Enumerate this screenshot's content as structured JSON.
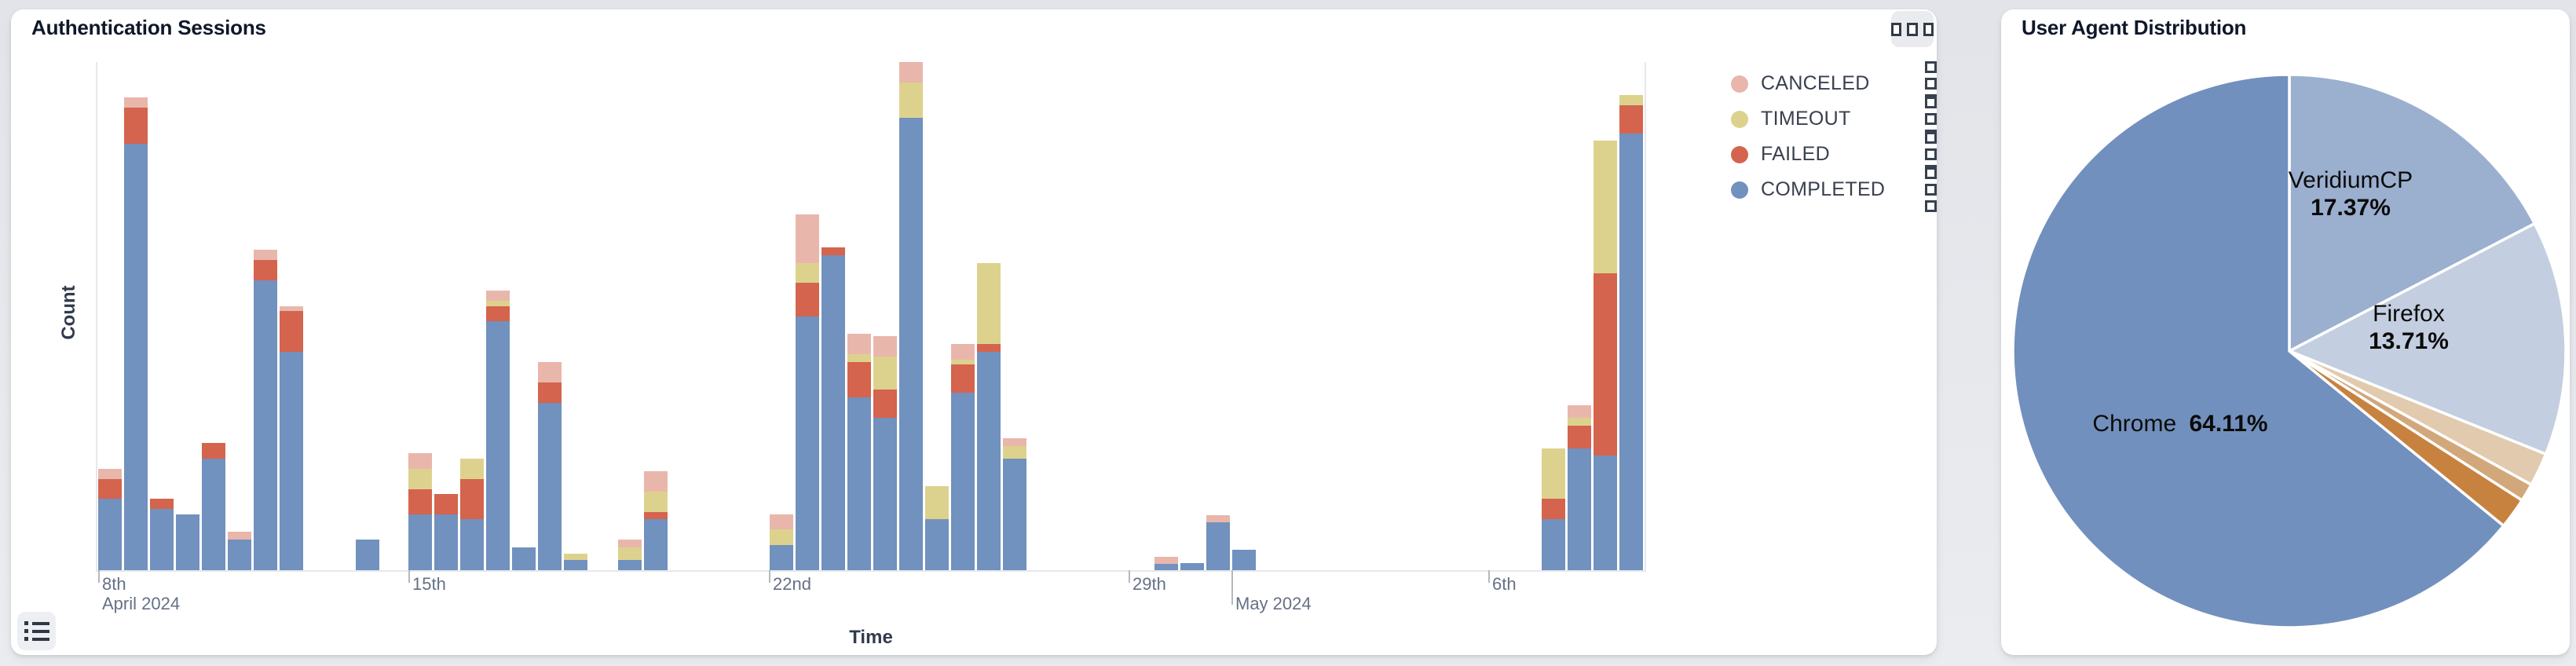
{
  "auth_panel": {
    "title": "Authentication Sessions",
    "xlabel": "Time",
    "ylabel": "Count",
    "legend": [
      {
        "label": "CANCELED",
        "color": "#E9B6AC"
      },
      {
        "label": "TIMEOUT",
        "color": "#DDD28D"
      },
      {
        "label": "FAILED",
        "color": "#D4644D"
      },
      {
        "label": "COMPLETED",
        "color": "#7191BE"
      }
    ],
    "series_colors": {
      "completed": "#7191BE",
      "failed": "#D4644D",
      "timeout": "#DDD28D",
      "canceled": "#E9B6AC"
    },
    "icons": {
      "corner_button": "drag-handle-squares-icon",
      "bottom_left_button": "list-icon",
      "legend_row_icon": "kebab-squares-icon"
    }
  },
  "ua_panel": {
    "title": "User Agent Distribution",
    "labels": {
      "chrome": {
        "name": "Chrome",
        "pct": "64.11%"
      },
      "veridium": {
        "name": "VeridiumCP",
        "pct": "17.37%"
      },
      "firefox": {
        "name": "Firefox",
        "pct": "13.71%"
      }
    }
  },
  "chart_data": [
    {
      "type": "bar",
      "subtype": "stacked-time-histogram",
      "title": "Authentication Sessions",
      "xlabel": "Time",
      "ylabel": "Count",
      "legend_position": "right-top",
      "y_axis_note": "no numeric ticks shown; values below are relative units (100 = tallest bar, plot height)",
      "ylim": [
        0,
        100
      ],
      "stack_order_bottom_to_top": [
        "completed",
        "failed",
        "timeout",
        "canceled"
      ],
      "x_ticks": [
        {
          "x": 125,
          "label": "8th",
          "sub": "April 2024",
          "tall": false
        },
        {
          "x": 520,
          "label": "15th",
          "sub": "",
          "tall": false
        },
        {
          "x": 979,
          "label": "22nd",
          "sub": "",
          "tall": false
        },
        {
          "x": 1437,
          "label": "29th",
          "sub": "",
          "tall": false
        },
        {
          "x": 1568,
          "label": "",
          "sub": "May 2024",
          "tall": true
        },
        {
          "x": 1895,
          "label": "6th",
          "sub": "",
          "tall": false
        }
      ],
      "bars": [
        {
          "x": 125,
          "completed": 14,
          "failed": 4,
          "timeout": 0,
          "canceled": 2
        },
        {
          "x": 158,
          "completed": 84,
          "failed": 7,
          "timeout": 0,
          "canceled": 2
        },
        {
          "x": 191,
          "completed": 12,
          "failed": 2,
          "timeout": 0,
          "canceled": 0
        },
        {
          "x": 224,
          "completed": 11,
          "failed": 0,
          "timeout": 0,
          "canceled": 0
        },
        {
          "x": 257,
          "completed": 22,
          "failed": 3,
          "timeout": 0,
          "canceled": 0
        },
        {
          "x": 290,
          "completed": 6,
          "failed": 0,
          "timeout": 0,
          "canceled": 1.5
        },
        {
          "x": 323,
          "completed": 57,
          "failed": 4,
          "timeout": 0,
          "canceled": 2
        },
        {
          "x": 356,
          "completed": 43,
          "failed": 8,
          "timeout": 0,
          "canceled": 1
        },
        {
          "x": 453,
          "completed": 6,
          "failed": 0,
          "timeout": 0,
          "canceled": 0
        },
        {
          "x": 520,
          "completed": 11,
          "failed": 5,
          "timeout": 4,
          "canceled": 3
        },
        {
          "x": 553,
          "completed": 11,
          "failed": 4,
          "timeout": 0,
          "canceled": 0
        },
        {
          "x": 586,
          "completed": 10,
          "failed": 8,
          "timeout": 4,
          "canceled": 0
        },
        {
          "x": 619,
          "completed": 49,
          "failed": 3,
          "timeout": 1,
          "canceled": 2
        },
        {
          "x": 652,
          "completed": 4.5,
          "failed": 0,
          "timeout": 0,
          "canceled": 0
        },
        {
          "x": 685,
          "completed": 33,
          "failed": 4,
          "timeout": 0,
          "canceled": 4
        },
        {
          "x": 718,
          "completed": 2,
          "failed": 0,
          "timeout": 1.2,
          "canceled": 0
        },
        {
          "x": 787,
          "completed": 2,
          "failed": 0,
          "timeout": 2.5,
          "canceled": 1.5
        },
        {
          "x": 820,
          "completed": 10,
          "failed": 1.5,
          "timeout": 4,
          "canceled": 4
        },
        {
          "x": 980,
          "completed": 5,
          "failed": 0,
          "timeout": 3,
          "canceled": 3
        },
        {
          "x": 1013,
          "completed": 50,
          "failed": 6.5,
          "timeout": 4,
          "canceled": 9.5
        },
        {
          "x": 1046,
          "completed": 62,
          "failed": 1.5,
          "timeout": 0,
          "canceled": 0
        },
        {
          "x": 1079,
          "completed": 34,
          "failed": 7,
          "timeout": 1.5,
          "canceled": 4
        },
        {
          "x": 1112,
          "completed": 30,
          "failed": 5.5,
          "timeout": 6.5,
          "canceled": 4
        },
        {
          "x": 1145,
          "completed": 89,
          "failed": 0,
          "timeout": 7,
          "canceled": 4
        },
        {
          "x": 1178,
          "completed": 10,
          "failed": 0,
          "timeout": 6.5,
          "canceled": 0
        },
        {
          "x": 1211,
          "completed": 35,
          "failed": 5.5,
          "timeout": 1,
          "canceled": 3
        },
        {
          "x": 1244,
          "completed": 43,
          "failed": 1.5,
          "timeout": 16,
          "canceled": 0
        },
        {
          "x": 1277,
          "completed": 22,
          "failed": 0,
          "timeout": 2.5,
          "canceled": 1.5
        },
        {
          "x": 1470,
          "completed": 1.2,
          "failed": 0,
          "timeout": 0,
          "canceled": 1.4
        },
        {
          "x": 1503,
          "completed": 1.4,
          "failed": 0,
          "timeout": 0,
          "canceled": 0
        },
        {
          "x": 1536,
          "completed": 9.5,
          "failed": 0,
          "timeout": 0,
          "canceled": 1.4
        },
        {
          "x": 1569,
          "completed": 4,
          "failed": 0,
          "timeout": 0,
          "canceled": 0
        },
        {
          "x": 1963,
          "completed": 10,
          "failed": 4,
          "timeout": 10,
          "canceled": 0
        },
        {
          "x": 1996,
          "completed": 24,
          "failed": 4.5,
          "timeout": 1.5,
          "canceled": 2.5
        },
        {
          "x": 2029,
          "completed": 22.5,
          "failed": 36,
          "timeout": 26,
          "canceled": 0
        },
        {
          "x": 2062,
          "completed": 86,
          "failed": 5.5,
          "timeout": 2,
          "canceled": 0
        }
      ]
    },
    {
      "type": "pie",
      "title": "User Agent Distribution",
      "start_angle": "12 o'clock, clockwise",
      "slices": [
        {
          "label": "VeridiumCP",
          "pct": 17.37,
          "color": "#9BAFCF"
        },
        {
          "label": "Firefox",
          "pct": 13.71,
          "color": "#C3CFE0"
        },
        {
          "label": "other-1",
          "pct": 1.95,
          "color": "#E2CAAE"
        },
        {
          "label": "other-2",
          "pct": 1.05,
          "color": "#D2A87B"
        },
        {
          "label": "other-3",
          "pct": 1.81,
          "color": "#C8823F"
        },
        {
          "label": "Chrome",
          "pct": 64.11,
          "color": "#7290BD"
        }
      ]
    }
  ]
}
